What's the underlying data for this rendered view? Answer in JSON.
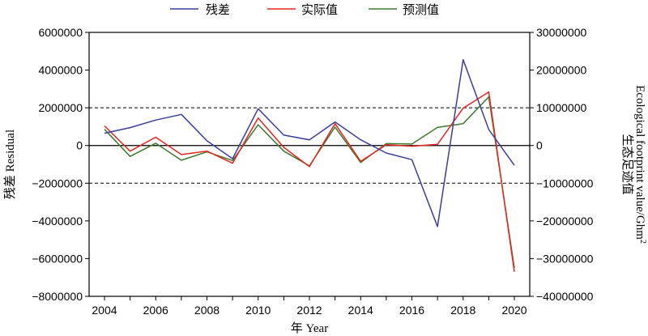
{
  "chart_data": {
    "type": "line",
    "x": [
      2004,
      2005,
      2006,
      2007,
      2008,
      2009,
      2010,
      2011,
      2012,
      2013,
      2014,
      2015,
      2016,
      2017,
      2018,
      2019,
      2020
    ],
    "x_ticks": [
      "2004",
      "2006",
      "2008",
      "2010",
      "2012",
      "2014",
      "2016",
      "2018",
      "2020"
    ],
    "xlim": [
      2003.4,
      2020.6
    ],
    "xlabel": "年 Year",
    "ylabel_left": "残差 Residual",
    "ylabel_right_cn": "生态足迹值",
    "ylabel_right_en": "Ecological footprint value/Ghm",
    "ylabel_right_sup": "2",
    "ylim_left": [
      -8000000,
      6000000
    ],
    "ylim_right": [
      -40000000,
      30000000
    ],
    "yticks_left": [
      "6000000",
      "4000000",
      "2000000",
      "0",
      "−2000000",
      "−4000000",
      "−6000000",
      "−8000000"
    ],
    "yticks_right": [
      "30000000",
      "20000000",
      "10000000",
      "0",
      "−10000000",
      "−20000000",
      "−30000000",
      "−40000000"
    ],
    "reference_lines_left": [
      2000000,
      0,
      -2000000
    ],
    "legend_position": "top",
    "series": [
      {
        "name": "残差",
        "axis": "left",
        "color": "#3a3f9a",
        "values": [
          650000,
          950000,
          1350000,
          1650000,
          250000,
          -700000,
          1950000,
          550000,
          300000,
          1250000,
          300000,
          -400000,
          -750000,
          -4300000,
          4550000,
          850000,
          -1050000
        ]
      },
      {
        "name": "实际值",
        "axis": "right",
        "color": "#e8251f",
        "values": [
          5200000,
          -1500000,
          2200000,
          -2400000,
          -1500000,
          -4700000,
          7300000,
          -500000,
          -5600000,
          5800000,
          -4200000,
          200000,
          -200000,
          300000,
          9900000,
          14200000,
          -33500000
        ]
      },
      {
        "name": "预测值",
        "axis": "right",
        "color": "#3d7a2e",
        "values": [
          4300000,
          -2900000,
          600000,
          -3900000,
          -1700000,
          -4000000,
          5500000,
          -1500000,
          -5400000,
          4900000,
          -4500000,
          500000,
          400000,
          4800000,
          5800000,
          12900000,
          -32500000
        ]
      }
    ]
  }
}
